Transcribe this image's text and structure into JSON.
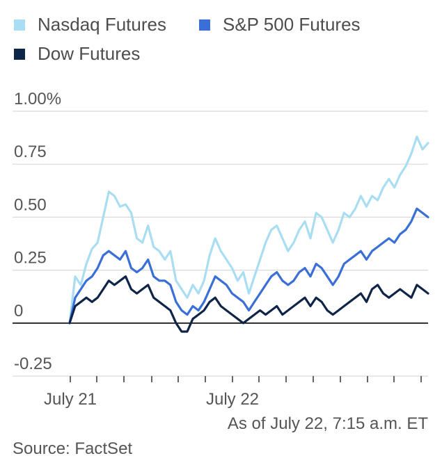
{
  "chart_data": {
    "type": "line",
    "ylim": [
      -0.25,
      1.0
    ],
    "y_ticks": [
      {
        "value": 1.0,
        "label": "1.00%"
      },
      {
        "value": 0.75,
        "label": "0.75"
      },
      {
        "value": 0.5,
        "label": "0.50"
      },
      {
        "value": 0.25,
        "label": "0.25"
      },
      {
        "value": 0.0,
        "label": "0"
      },
      {
        "value": -0.25,
        "label": "-0.25"
      }
    ],
    "x_labels": [
      "July 21",
      "July 22"
    ],
    "grid": true,
    "legend_position": "top-left",
    "series": [
      {
        "name": "Nasdaq Futures",
        "color": "#a9ddf2",
        "values": [
          0.0,
          0.22,
          0.18,
          0.28,
          0.35,
          0.38,
          0.5,
          0.62,
          0.6,
          0.55,
          0.56,
          0.52,
          0.4,
          0.38,
          0.46,
          0.36,
          0.34,
          0.3,
          0.34,
          0.2,
          0.16,
          0.12,
          0.18,
          0.14,
          0.2,
          0.32,
          0.4,
          0.34,
          0.3,
          0.26,
          0.2,
          0.24,
          0.14,
          0.22,
          0.3,
          0.38,
          0.44,
          0.46,
          0.4,
          0.34,
          0.38,
          0.44,
          0.48,
          0.4,
          0.52,
          0.5,
          0.44,
          0.38,
          0.44,
          0.52,
          0.5,
          0.54,
          0.6,
          0.55,
          0.6,
          0.58,
          0.64,
          0.68,
          0.64,
          0.7,
          0.74,
          0.8,
          0.88,
          0.82,
          0.85
        ]
      },
      {
        "name": "S&P 500 Futures",
        "color": "#3a6fd8",
        "values": [
          0.0,
          0.12,
          0.16,
          0.2,
          0.22,
          0.26,
          0.32,
          0.34,
          0.32,
          0.3,
          0.34,
          0.26,
          0.24,
          0.26,
          0.3,
          0.22,
          0.2,
          0.2,
          0.18,
          0.1,
          0.06,
          0.04,
          0.08,
          0.06,
          0.1,
          0.16,
          0.22,
          0.2,
          0.18,
          0.14,
          0.12,
          0.1,
          0.06,
          0.1,
          0.14,
          0.18,
          0.22,
          0.24,
          0.2,
          0.18,
          0.2,
          0.24,
          0.26,
          0.22,
          0.28,
          0.26,
          0.22,
          0.18,
          0.22,
          0.28,
          0.3,
          0.32,
          0.34,
          0.3,
          0.34,
          0.36,
          0.38,
          0.4,
          0.38,
          0.42,
          0.44,
          0.48,
          0.54,
          0.52,
          0.5
        ]
      },
      {
        "name": "Dow Futures",
        "color": "#0f2548",
        "values": [
          0.0,
          0.08,
          0.1,
          0.12,
          0.1,
          0.12,
          0.16,
          0.2,
          0.18,
          0.2,
          0.22,
          0.16,
          0.14,
          0.16,
          0.18,
          0.12,
          0.1,
          0.08,
          0.06,
          0.0,
          -0.04,
          -0.04,
          0.02,
          0.04,
          0.06,
          0.1,
          0.12,
          0.08,
          0.06,
          0.04,
          0.02,
          0.0,
          0.02,
          0.04,
          0.06,
          0.04,
          0.06,
          0.08,
          0.04,
          0.06,
          0.08,
          0.1,
          0.12,
          0.08,
          0.12,
          0.1,
          0.06,
          0.04,
          0.06,
          0.08,
          0.1,
          0.12,
          0.14,
          0.1,
          0.16,
          0.18,
          0.14,
          0.12,
          0.14,
          0.16,
          0.14,
          0.12,
          0.18,
          0.16,
          0.14
        ]
      }
    ]
  },
  "footer": {
    "as_of": "As of July 22, 7:15 a.m. ET",
    "source": "Source: FactSet"
  }
}
